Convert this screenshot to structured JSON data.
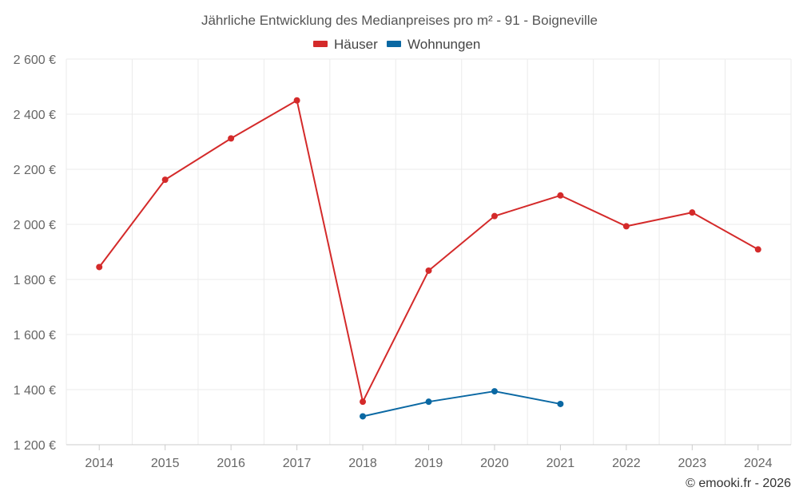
{
  "chart_data": {
    "type": "line",
    "title": "Jährliche Entwicklung des Medianpreises pro m² - 91 - Boigneville",
    "categories": [
      "2014",
      "2015",
      "2016",
      "2017",
      "2018",
      "2019",
      "2020",
      "2021",
      "2022",
      "2023",
      "2024"
    ],
    "series": [
      {
        "name": "Häuser",
        "color": "#d42a2a",
        "values": [
          1845,
          2162,
          2312,
          2450,
          1356,
          1832,
          2030,
          2105,
          1993,
          2043,
          1909
        ]
      },
      {
        "name": "Wohnungen",
        "color": "#0a68a3",
        "values": [
          null,
          null,
          null,
          null,
          1303,
          1356,
          1394,
          1348,
          null,
          null,
          null
        ]
      }
    ],
    "yticks": [
      1200,
      1400,
      1600,
      1800,
      2000,
      2200,
      2400,
      2600
    ],
    "ytick_labels": [
      "1 200 €",
      "1 400 €",
      "1 600 €",
      "1 800 €",
      "2 000 €",
      "2 200 €",
      "2 400 €",
      "2 600 €"
    ],
    "ylim": [
      1200,
      2600
    ],
    "xlabel": "",
    "ylabel": "",
    "grid": true,
    "legend_position": "top-center"
  },
  "credit": "© emooki.fr - 2026"
}
